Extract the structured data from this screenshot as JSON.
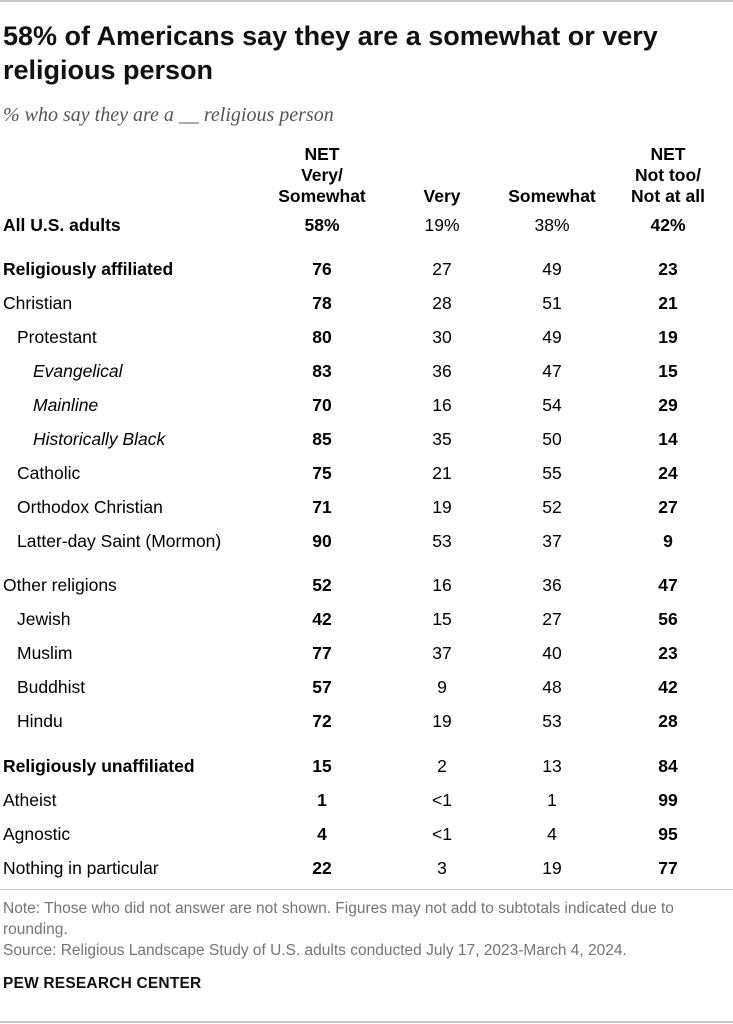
{
  "title": "58% of Americans say they are a somewhat or very religious person",
  "subtitle": "% who say they are a __ religious person",
  "columns": {
    "net": "NET\nVery/\nSomewhat",
    "very": "Very",
    "somewhat": "Somewhat",
    "not": "NET\nNot too/\nNot at all"
  },
  "chart_data": {
    "type": "table",
    "columns": [
      "NET Very/Somewhat",
      "Very",
      "Somewhat",
      "NET Not too/Not at all"
    ],
    "rows": [
      {
        "label": "All U.S. adults",
        "indent": 0,
        "bold": true,
        "values": [
          "58%",
          "19%",
          "38%",
          "42%"
        ]
      },
      {
        "label": "Religiously affiliated",
        "indent": 0,
        "bold": true,
        "values": [
          "76",
          "27",
          "49",
          "23"
        ]
      },
      {
        "label": "Christian",
        "indent": 0,
        "bold": false,
        "values": [
          "78",
          "28",
          "51",
          "21"
        ]
      },
      {
        "label": "Protestant",
        "indent": 1,
        "bold": false,
        "values": [
          "80",
          "30",
          "49",
          "19"
        ]
      },
      {
        "label": "Evangelical",
        "indent": 2,
        "bold": false,
        "values": [
          "83",
          "36",
          "47",
          "15"
        ]
      },
      {
        "label": "Mainline",
        "indent": 2,
        "bold": false,
        "values": [
          "70",
          "16",
          "54",
          "29"
        ]
      },
      {
        "label": "Historically Black",
        "indent": 2,
        "bold": false,
        "values": [
          "85",
          "35",
          "50",
          "14"
        ]
      },
      {
        "label": "Catholic",
        "indent": 1,
        "bold": false,
        "values": [
          "75",
          "21",
          "55",
          "24"
        ]
      },
      {
        "label": "Orthodox Christian",
        "indent": 1,
        "bold": false,
        "values": [
          "71",
          "19",
          "52",
          "27"
        ]
      },
      {
        "label": "Latter-day Saint (Mormon)",
        "indent": 1,
        "bold": false,
        "values": [
          "90",
          "53",
          "37",
          "9"
        ]
      },
      {
        "label": "Other religions",
        "indent": 0,
        "bold": false,
        "values": [
          "52",
          "16",
          "36",
          "47"
        ]
      },
      {
        "label": "Jewish",
        "indent": 1,
        "bold": false,
        "values": [
          "42",
          "15",
          "27",
          "56"
        ]
      },
      {
        "label": "Muslim",
        "indent": 1,
        "bold": false,
        "values": [
          "77",
          "37",
          "40",
          "23"
        ]
      },
      {
        "label": "Buddhist",
        "indent": 1,
        "bold": false,
        "values": [
          "57",
          "9",
          "48",
          "42"
        ]
      },
      {
        "label": "Hindu",
        "indent": 1,
        "bold": false,
        "values": [
          "72",
          "19",
          "53",
          "28"
        ]
      },
      {
        "label": "Religiously unaffiliated",
        "indent": 0,
        "bold": true,
        "values": [
          "15",
          "2",
          "13",
          "84"
        ]
      },
      {
        "label": "Atheist",
        "indent": 0,
        "bold": false,
        "values": [
          "1",
          "<1",
          "1",
          "99"
        ]
      },
      {
        "label": "Agnostic",
        "indent": 0,
        "bold": false,
        "values": [
          "4",
          "<1",
          "4",
          "95"
        ]
      },
      {
        "label": "Nothing in particular",
        "indent": 0,
        "bold": false,
        "values": [
          "22",
          "3",
          "19",
          "77"
        ]
      }
    ]
  },
  "note": "Note: Those who did not answer are not shown. Figures may not add to subtotals indicated due to rounding.",
  "source": "Source: Religious Landscape Study of U.S. adults conducted July 17, 2023-March 4, 2024.",
  "organization": "PEW RESEARCH CENTER"
}
